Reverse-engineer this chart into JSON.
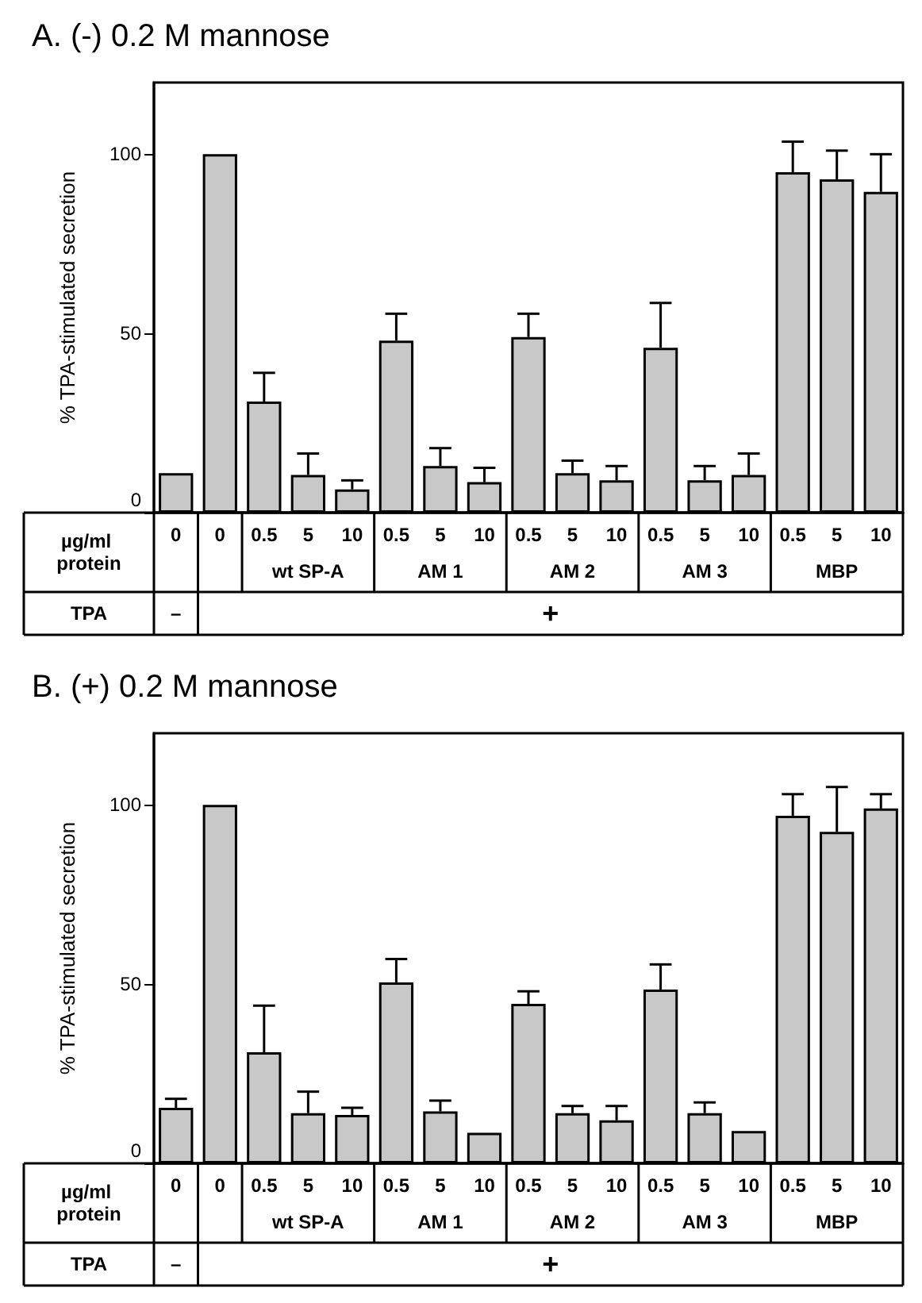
{
  "chart_data": [
    {
      "type": "bar",
      "title": "A. (-) 0.2 M mannose",
      "ylabel": "% TPA-stimulated secretion",
      "categories": [
        "0",
        "0",
        "0.5",
        "5",
        "10",
        "0.5",
        "5",
        "10",
        "0.5",
        "5",
        "10",
        "0.5",
        "5",
        "10",
        "0.5",
        "5",
        "10"
      ],
      "values": [
        11,
        100,
        31,
        10.5,
        6.5,
        48,
        13,
        8.5,
        49,
        11,
        9,
        46,
        9,
        10.5,
        95,
        93,
        89.5
      ],
      "errors": [
        null,
        null,
        [
          31,
          39
        ],
        [
          10.5,
          16.5
        ],
        [
          6.5,
          9
        ],
        [
          48,
          55.5
        ],
        [
          13,
          18
        ],
        [
          8.5,
          12.5
        ],
        [
          49,
          55.5
        ],
        [
          11,
          14.5
        ],
        [
          9,
          13
        ],
        [
          46,
          58.5
        ],
        [
          9,
          13
        ],
        [
          10.5,
          16.5
        ],
        [
          95,
          103.5
        ],
        [
          93,
          101
        ],
        [
          89.5,
          100
        ]
      ],
      "color": "#c8c8c8",
      "ylim": [
        0,
        120
      ],
      "yticks": [
        0,
        50,
        100
      ],
      "annotations": [
        "µg/ml protein",
        "wt SP-A",
        "AM 1",
        "AM 2",
        "AM 3",
        "MBP",
        "TPA",
        "–",
        "+"
      ]
    },
    {
      "type": "bar",
      "title": "B. (+) 0.2 M mannose",
      "ylabel": "% TPA-stimulated secretion",
      "categories": [
        "0",
        "0",
        "0.5",
        "5",
        "10",
        "0.5",
        "5",
        "10",
        "0.5",
        "5",
        "10",
        "0.5",
        "5",
        "10",
        "0.5",
        "5",
        "10"
      ],
      "values": [
        15.5,
        100,
        31,
        14,
        13.5,
        50.5,
        14.5,
        8.5,
        44.5,
        14,
        12,
        48.5,
        14,
        9,
        97,
        92.5,
        99
      ],
      "errors": [
        [
          15.5,
          18
        ],
        null,
        [
          31,
          44
        ],
        [
          14,
          20
        ],
        [
          13.5,
          15.5
        ],
        [
          50.5,
          57
        ],
        [
          14.5,
          17.5
        ],
        null,
        [
          44.5,
          48
        ],
        [
          14,
          16
        ],
        [
          12,
          16
        ],
        [
          48.5,
          55.5
        ],
        [
          14,
          17
        ],
        null,
        [
          97,
          103
        ],
        [
          92.5,
          105
        ],
        [
          99,
          103
        ]
      ],
      "color": "#c8c8c8",
      "ylim": [
        0,
        120
      ],
      "yticks": [
        0,
        50,
        100
      ],
      "annotations": [
        "µg/ml protein",
        "wt SP-A",
        "AM 1",
        "AM 2",
        "AM 3",
        "MBP",
        "TPA",
        "–",
        "+"
      ]
    }
  ]
}
